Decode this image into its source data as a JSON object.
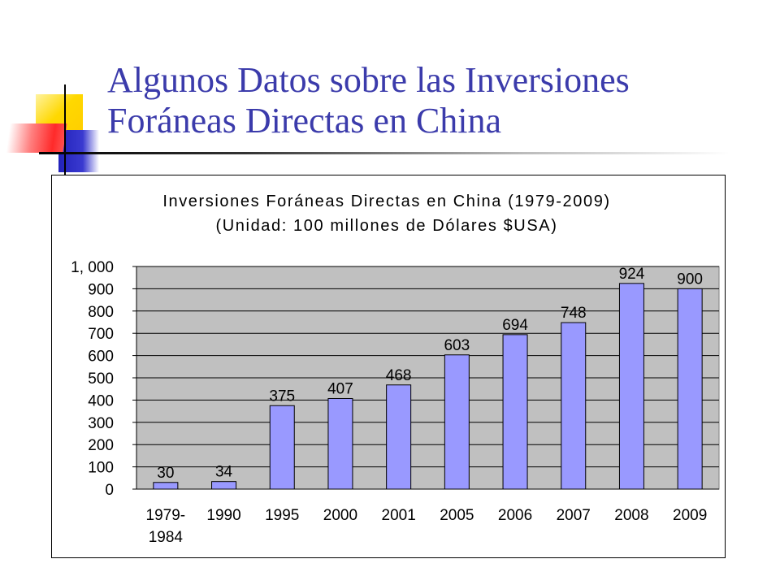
{
  "slide": {
    "title_line1": "Algunos Datos sobre las Inversiones",
    "title_line2": "Foráneas Directas en China"
  },
  "colors": {
    "title": "#3b3bab",
    "bar_fill": "#9999ff",
    "plot_background": "#c0c0c0",
    "deco_yellow": "#ffd800",
    "deco_blue": "#3333cc",
    "deco_red": "#ff3030"
  },
  "chart_data": {
    "type": "bar",
    "title": "Inversiones Foráneas Directas en China (1979-2009)",
    "subtitle": "(Unidad: 100 millones de Dólares $USA)",
    "categories": [
      [
        "1979-",
        "1984"
      ],
      [
        "1990"
      ],
      [
        "1995"
      ],
      [
        "2000"
      ],
      [
        "2001"
      ],
      [
        "2005"
      ],
      [
        "2006"
      ],
      [
        "2007"
      ],
      [
        "2008"
      ],
      [
        "2009"
      ]
    ],
    "values": [
      30,
      34,
      375,
      407,
      468,
      603,
      694,
      748,
      924,
      900
    ],
    "data_labels": [
      "30",
      "34",
      "375",
      "407",
      "468",
      "603",
      "694",
      "748",
      "924",
      "900"
    ],
    "yticks": [
      0,
      100,
      200,
      300,
      400,
      500,
      600,
      700,
      800,
      900,
      1000
    ],
    "ytick_labels": [
      "0",
      "100",
      "200",
      "300",
      "400",
      "500",
      "600",
      "700",
      "800",
      "900",
      "1, 000"
    ],
    "ylim": [
      0,
      1000
    ],
    "xlabel": "",
    "ylabel": "",
    "grid": true,
    "legend": "none"
  }
}
